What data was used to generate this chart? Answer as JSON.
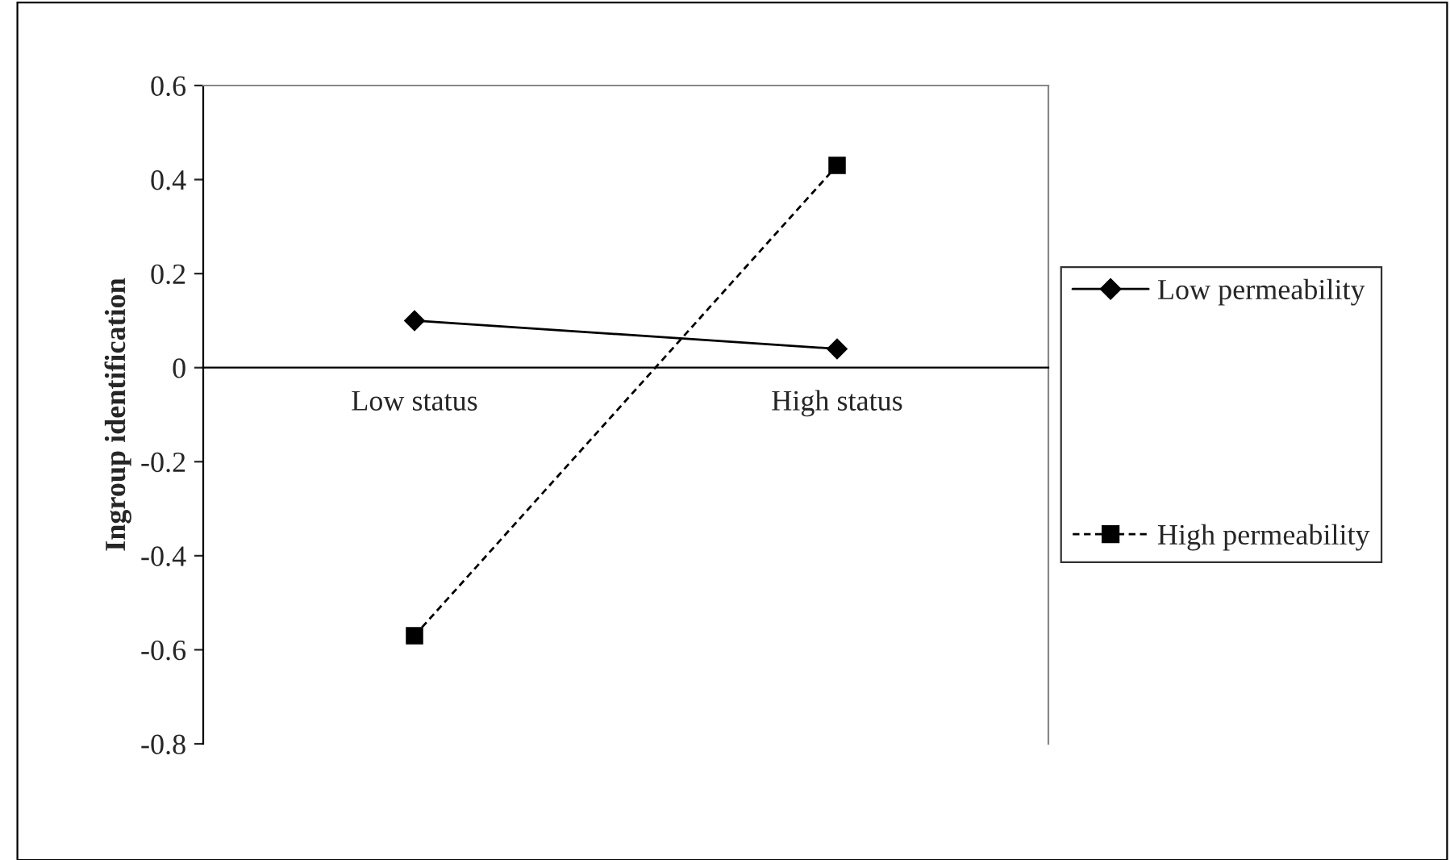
{
  "chart_data": {
    "type": "line",
    "ylabel": "Ingroup identification",
    "categories": [
      "Low status",
      "High status"
    ],
    "series": [
      {
        "name": "Low permeability",
        "color": "#000000",
        "values": [
          0.1,
          0.04
        ],
        "marker": "diamond",
        "line_style": "solid"
      },
      {
        "name": "High permeability",
        "color": "#000000",
        "values": [
          -0.57,
          0.43
        ],
        "marker": "square",
        "line_style": "dashed"
      }
    ],
    "ylim": [
      -0.8,
      0.6
    ],
    "yticks": [
      -0.8,
      -0.6,
      -0.4,
      -0.2,
      0,
      0.2,
      0.4,
      0.6
    ],
    "grid": false,
    "legend": "right"
  }
}
